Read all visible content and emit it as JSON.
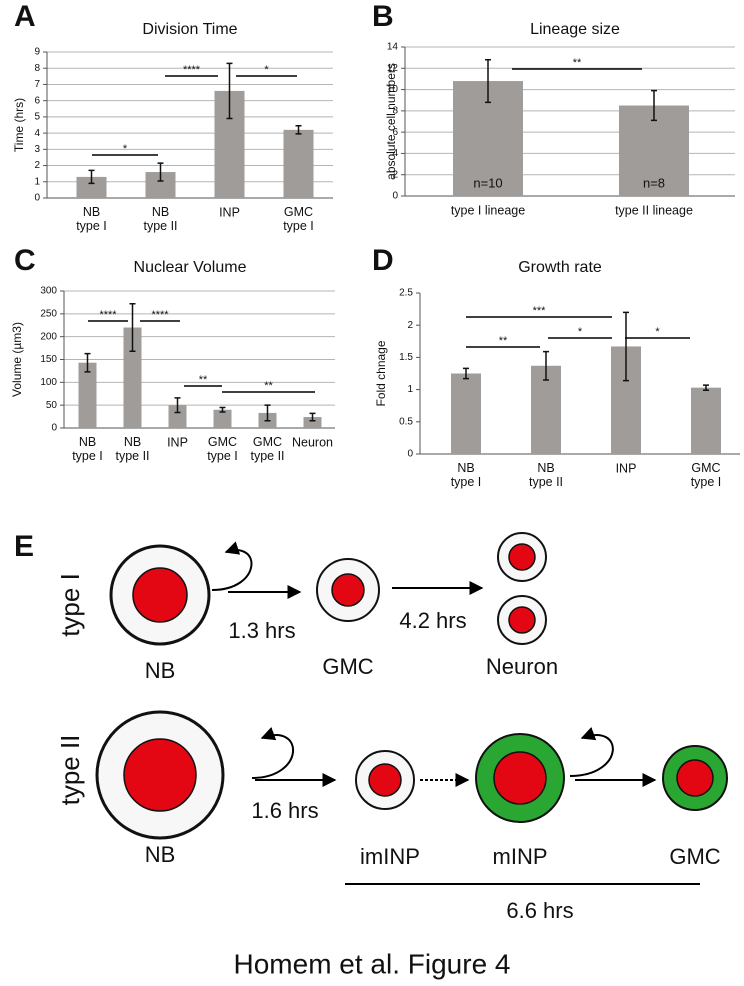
{
  "chart_data": [
    {
      "type": "bar",
      "panel": "A",
      "title": "Division Time",
      "y_label": "Time (hrs)",
      "categories": [
        "NB\ntype I",
        "NB\ntype II",
        "INP",
        "GMC\ntype I"
      ],
      "values": [
        1.3,
        1.6,
        6.6,
        4.2
      ],
      "errors": [
        0.4,
        0.55,
        1.7,
        0.25
      ],
      "color": "#a09c99",
      "ylim": [
        0,
        9
      ],
      "yticks": [
        0,
        1,
        2,
        3,
        4,
        5,
        6,
        7,
        8,
        9
      ],
      "grid": true,
      "significance": [
        "*",
        "****",
        "*"
      ]
    },
    {
      "type": "bar",
      "panel": "B",
      "title": "Lineage size",
      "y_label": "absolute cell numbers",
      "categories": [
        "type I lineage",
        "type II lineage"
      ],
      "values": [
        10.8,
        8.5
      ],
      "errors": [
        2.0,
        1.4
      ],
      "color": "#a09c99",
      "ylim": [
        0,
        14
      ],
      "yticks": [
        0,
        2,
        4,
        6,
        8,
        10,
        12,
        14
      ],
      "grid": true,
      "annotations": [
        "n=10",
        "n=8"
      ],
      "significance": [
        "**"
      ]
    },
    {
      "type": "bar",
      "panel": "C",
      "title": "Nuclear Volume",
      "y_label": "Volume (µm3)",
      "categories": [
        "NB\ntype I",
        "NB\ntype II",
        "INP",
        "GMC\ntype I",
        "GMC\ntype II",
        "Neuron"
      ],
      "values": [
        143,
        220,
        50,
        40,
        33,
        24
      ],
      "errors": [
        20,
        52,
        16,
        5,
        17,
        8
      ],
      "color": "#a09c99",
      "ylim": [
        0,
        300
      ],
      "yticks": [
        0,
        50,
        100,
        150,
        200,
        250,
        300
      ],
      "grid": true,
      "significance": [
        "****",
        "****",
        "**",
        "**"
      ]
    },
    {
      "type": "bar",
      "panel": "D",
      "title": "Growth rate",
      "y_label": "Fold chnage",
      "categories": [
        "NB\ntype I",
        "NB\ntype II",
        "INP",
        "GMC\ntype I"
      ],
      "values": [
        1.25,
        1.37,
        1.67,
        1.03
      ],
      "errors": [
        0.08,
        0.22,
        0.53,
        0.04
      ],
      "color": "#a09c99",
      "ylim": [
        0,
        2.5
      ],
      "yticks": [
        0,
        0.5,
        1,
        1.5,
        2,
        2.5
      ],
      "grid": false,
      "significance": [
        "***",
        "**",
        "*",
        "*"
      ]
    }
  ],
  "diagram": {
    "panel": "E",
    "rows": [
      {
        "label": "type I",
        "times": [
          "1.3 hrs",
          "4.2 hrs"
        ],
        "cells": [
          "NB",
          "GMC",
          "Neuron"
        ]
      },
      {
        "label": "type II",
        "times": [
          "1.6 hrs"
        ],
        "cells": [
          "NB",
          "imINP",
          "mINP",
          "GMC"
        ],
        "total": "6.6 hrs"
      }
    ]
  },
  "caption": "Homem et al. Figure 4"
}
